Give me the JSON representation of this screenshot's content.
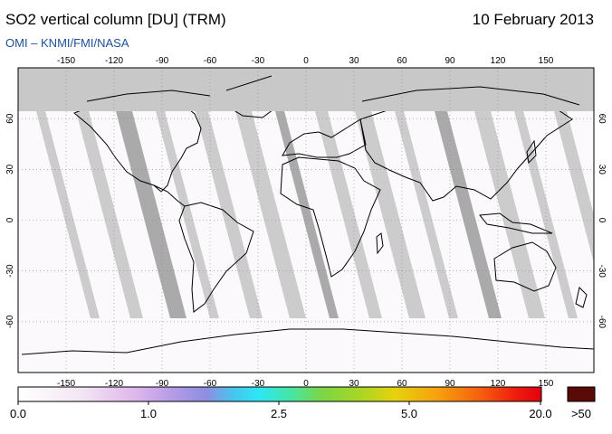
{
  "header": {
    "title": "SO2 vertical column [DU] (TRM)",
    "date": "10 February 2013",
    "credit": "OMI  –  KNMI/FMI/NASA"
  },
  "map": {
    "lon_ticks": [
      "-150",
      "-120",
      "-90",
      "-60",
      "-30",
      "0",
      "30",
      "60",
      "90",
      "120",
      "150"
    ],
    "lat_ticks": [
      "60",
      "30",
      "0",
      "-30",
      "-60"
    ],
    "lon_range": [
      -180,
      180
    ],
    "lat_range": [
      -90,
      90
    ],
    "colors": {
      "polar_gap": "#c8c8c8",
      "swath_gap": "#c4c4c4",
      "land_outline": "#000000",
      "grid": "#888888"
    }
  },
  "colorbar": {
    "labels": [
      "0.0",
      "1.0",
      "2.5",
      "5.0",
      "20.0"
    ],
    "over_label": ">50",
    "over_color": "#5a0a06"
  }
}
